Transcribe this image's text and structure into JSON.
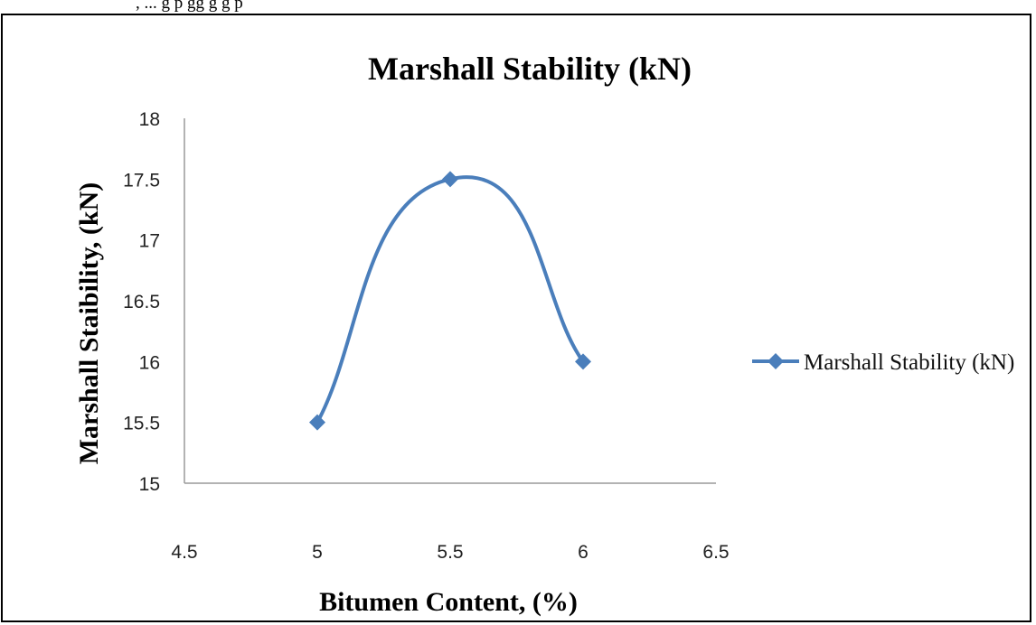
{
  "page": {
    "top_fragment": ", ...         g            p     gg g                               g                             p"
  },
  "chart_data": {
    "type": "line",
    "title": "Marshall Stability (kN)",
    "xlabel": "Bitumen Content, (%)",
    "ylabel": "Marshall Staibility, (kN)",
    "xlim": [
      4.5,
      6.5
    ],
    "ylim": [
      15,
      18
    ],
    "xticks": [
      "4.5",
      "5",
      "5.5",
      "6",
      "6.5"
    ],
    "yticks": [
      "15",
      "15.5",
      "16",
      "16.5",
      "17",
      "17.5",
      "18"
    ],
    "smooth": true,
    "grid": false,
    "legend": "right",
    "series": [
      {
        "name": "Marshall Stability (kN)",
        "color": "#4a7ebb",
        "marker": "diamond",
        "x": [
          5,
          5.5,
          6
        ],
        "y": [
          15.5,
          17.5,
          16
        ]
      }
    ]
  }
}
